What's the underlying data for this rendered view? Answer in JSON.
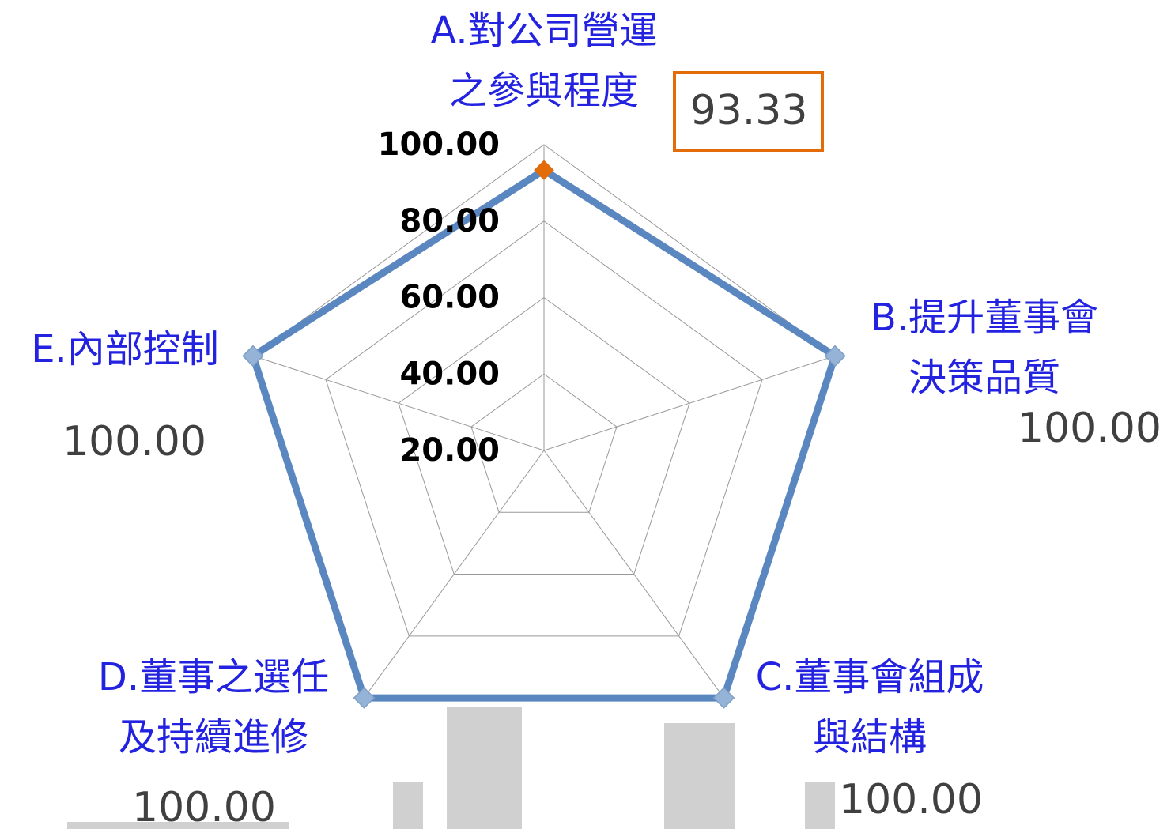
{
  "chart_data": {
    "type": "radar",
    "categories": [
      [
        "A.對公司營運",
        "之參與程度"
      ],
      [
        "B.提升董事會",
        "決策品質"
      ],
      [
        "C.董事會組成",
        "與結構"
      ],
      [
        "D.董事之選任",
        "及持續進修"
      ],
      [
        "E.內部控制"
      ]
    ],
    "values": [
      93.33,
      100,
      100,
      100,
      100
    ],
    "value_labels": [
      "93.33",
      "100.00",
      "100.00",
      "100.00",
      "100.00"
    ],
    "color": "#5b87c0",
    "marker_colors": [
      "#e36c09",
      "#95b3d7",
      "#95b3d7",
      "#95b3d7",
      "#95b3d7"
    ],
    "rlim": [
      20,
      100
    ],
    "rticks": [
      {
        "value": 20,
        "label": "20.00"
      },
      {
        "value": 40,
        "label": "40.00"
      },
      {
        "value": 60,
        "label": "60.00"
      },
      {
        "value": 80,
        "label": "80.00"
      },
      {
        "value": 100,
        "label": "100.00"
      }
    ],
    "grid": true
  }
}
